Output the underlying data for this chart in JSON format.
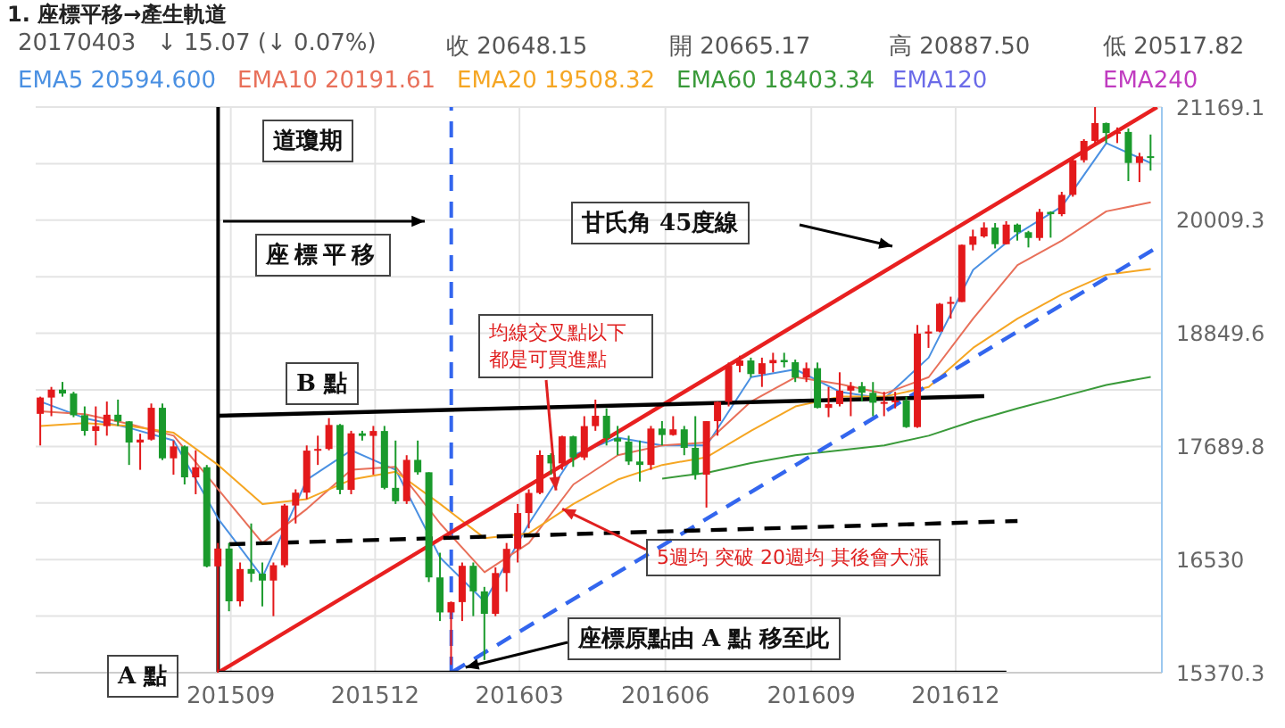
{
  "chart_data": {
    "type": "candlestick",
    "title": "1. 座標平移→產生軌道",
    "x": [
      "2015-05-04",
      "2015-05-11",
      "2015-05-18",
      "2015-05-25",
      "2015-06-01",
      "2015-06-08",
      "2015-06-15",
      "2015-06-22",
      "2015-06-29",
      "2015-07-06",
      "2015-07-13",
      "2015-07-20",
      "2015-07-27",
      "2015-08-03",
      "2015-08-10",
      "2015-08-17",
      "2015-08-24",
      "2015-08-31",
      "2015-09-07",
      "2015-09-14",
      "2015-09-21",
      "2015-09-28",
      "2015-10-05",
      "2015-10-12",
      "2015-10-19",
      "2015-10-26",
      "2015-11-02",
      "2015-11-09",
      "2015-11-16",
      "2015-11-23",
      "2015-11-30",
      "2015-12-07",
      "2015-12-14",
      "2015-12-21",
      "2015-12-28",
      "2016-01-04",
      "2016-01-11",
      "2016-01-18",
      "2016-01-25",
      "2016-02-01",
      "2016-02-08",
      "2016-02-15",
      "2016-02-22",
      "2016-02-29",
      "2016-03-07",
      "2016-03-14",
      "2016-03-21",
      "2016-03-28",
      "2016-04-04",
      "2016-04-11",
      "2016-04-18",
      "2016-04-25",
      "2016-05-02",
      "2016-05-09",
      "2016-05-16",
      "2016-05-23",
      "2016-05-30",
      "2016-06-06",
      "2016-06-13",
      "2016-06-20",
      "2016-06-27",
      "2016-07-04",
      "2016-07-11",
      "2016-07-18",
      "2016-07-25",
      "2016-08-01",
      "2016-08-08",
      "2016-08-15",
      "2016-08-22",
      "2016-08-29",
      "2016-09-05",
      "2016-09-12",
      "2016-09-19",
      "2016-09-26",
      "2016-10-03",
      "2016-10-10",
      "2016-10-17",
      "2016-10-24",
      "2016-10-31",
      "2016-11-07",
      "2016-11-14",
      "2016-11-21",
      "2016-11-28",
      "2016-12-05",
      "2016-12-12",
      "2016-12-19",
      "2016-12-26",
      "2017-01-02",
      "2017-01-09",
      "2017-01-16",
      "2017-01-23",
      "2017-01-30",
      "2017-02-06",
      "2017-02-13",
      "2017-02-20",
      "2017-02-27",
      "2017-03-06",
      "2017-03-13",
      "2017-03-20",
      "2017-03-27",
      "2017-04-03"
    ],
    "ohlc": [
      [
        18024,
        18200,
        17700,
        18191
      ],
      [
        18191,
        18300,
        18000,
        18272
      ],
      [
        18272,
        18351,
        18200,
        18232
      ],
      [
        18232,
        18250,
        17990,
        18010
      ],
      [
        18010,
        18100,
        17800,
        17849
      ],
      [
        17849,
        18100,
        17700,
        17898
      ],
      [
        17898,
        18150,
        17800,
        18015
      ],
      [
        18015,
        18170,
        17900,
        17947
      ],
      [
        17947,
        17950,
        17500,
        17730
      ],
      [
        17730,
        17820,
        17450,
        17760
      ],
      [
        17760,
        18130,
        17750,
        18086
      ],
      [
        18086,
        18130,
        17550,
        17568
      ],
      [
        17568,
        17750,
        17400,
        17690
      ],
      [
        17690,
        17700,
        17300,
        17373
      ],
      [
        17373,
        17650,
        17200,
        17477
      ],
      [
        17477,
        17500,
        16450,
        16460
      ],
      [
        16460,
        16700,
        15370.3,
        16643
      ],
      [
        16643,
        16700,
        16000,
        16102
      ],
      [
        16102,
        16500,
        16050,
        16433
      ],
      [
        16433,
        16900,
        16300,
        16385
      ],
      [
        16385,
        16500,
        16050,
        16315
      ],
      [
        16315,
        16500,
        15950,
        16472
      ],
      [
        16472,
        17100,
        16450,
        17084
      ],
      [
        17084,
        17250,
        16900,
        17216
      ],
      [
        17216,
        17700,
        17150,
        17647
      ],
      [
        17647,
        17800,
        17500,
        17664
      ],
      [
        17664,
        17980,
        17650,
        17910
      ],
      [
        17910,
        17920,
        17200,
        17245
      ],
      [
        17245,
        17850,
        17200,
        17824
      ],
      [
        17824,
        17850,
        17750,
        17798
      ],
      [
        17798,
        17900,
        17400,
        17848
      ],
      [
        17848,
        17900,
        17250,
        17265
      ],
      [
        17265,
        17750,
        17100,
        17128
      ],
      [
        17128,
        17600,
        17100,
        17552
      ],
      [
        17552,
        17750,
        17400,
        17425
      ],
      [
        17425,
        17425,
        16300,
        16347
      ],
      [
        16347,
        16600,
        15900,
        15988
      ],
      [
        15988,
        16100,
        15450,
        16094
      ],
      [
        16094,
        16500,
        15900,
        16466
      ],
      [
        16466,
        16500,
        15950,
        16204
      ],
      [
        16204,
        16250,
        15500,
        15974
      ],
      [
        15974,
        16450,
        15950,
        16392
      ],
      [
        16392,
        16700,
        16200,
        16640
      ],
      [
        16640,
        17100,
        16500,
        17007
      ],
      [
        17007,
        17250,
        16850,
        17213
      ],
      [
        17213,
        17650,
        17200,
        17602
      ],
      [
        17602,
        17620,
        17400,
        17516
      ],
      [
        17516,
        17800,
        17450,
        17793
      ],
      [
        17793,
        17800,
        17480,
        17577
      ],
      [
        17577,
        18000,
        17550,
        17898
      ],
      [
        17898,
        18170,
        17850,
        18004
      ],
      [
        18004,
        18080,
        17700,
        17774
      ],
      [
        17774,
        17900,
        17600,
        17740
      ],
      [
        17740,
        17800,
        17500,
        17535
      ],
      [
        17535,
        17750,
        17330,
        17500
      ],
      [
        17500,
        17900,
        17450,
        17873
      ],
      [
        17873,
        17950,
        17700,
        17807
      ],
      [
        17807,
        18000,
        17800,
        17865
      ],
      [
        17865,
        17900,
        17600,
        17675
      ],
      [
        17675,
        18000,
        17350,
        17400
      ],
      [
        17400,
        17950,
        17063,
        17949
      ],
      [
        17949,
        18150,
        17800,
        18147
      ],
      [
        18147,
        18550,
        18100,
        18516
      ],
      [
        18516,
        18620,
        18450,
        18571
      ],
      [
        18571,
        18600,
        18400,
        18432
      ],
      [
        18432,
        18600,
        18300,
        18543
      ],
      [
        18543,
        18650,
        18450,
        18576
      ],
      [
        18576,
        18650,
        18500,
        18553
      ],
      [
        18553,
        18580,
        18350,
        18395
      ],
      [
        18395,
        18550,
        18350,
        18492
      ],
      [
        18492,
        18550,
        18080,
        18085
      ],
      [
        18085,
        18300,
        17990,
        18124
      ],
      [
        18124,
        18450,
        18100,
        18262
      ],
      [
        18262,
        18350,
        18000,
        18308
      ],
      [
        18308,
        18350,
        18150,
        18240
      ],
      [
        18240,
        18350,
        18000,
        18138
      ],
      [
        18138,
        18250,
        18000,
        18145
      ],
      [
        18145,
        18250,
        18080,
        18161
      ],
      [
        18161,
        18200,
        17880,
        17888
      ],
      [
        17888,
        18935,
        17880,
        18847
      ],
      [
        18847,
        18935,
        18700,
        18868
      ],
      [
        18868,
        19160,
        18860,
        19152
      ],
      [
        19152,
        19225,
        19000,
        19171
      ],
      [
        19171,
        19760,
        19170,
        19757
      ],
      [
        19757,
        19912,
        19700,
        19843
      ],
      [
        19843,
        19987,
        19830,
        19934
      ],
      [
        19934,
        19980,
        19720,
        19763
      ],
      [
        19763,
        19999,
        19760,
        19964
      ],
      [
        19964,
        19975,
        19800,
        19886
      ],
      [
        19886,
        19900,
        19730,
        19827
      ],
      [
        19827,
        20125,
        19800,
        20094
      ],
      [
        20094,
        20100,
        19830,
        20071
      ],
      [
        20071,
        20300,
        20050,
        20269
      ],
      [
        20269,
        20640,
        20250,
        20624
      ],
      [
        20624,
        20840,
        20600,
        20822
      ],
      [
        20822,
        21169.1,
        20800,
        21005
      ],
      [
        21005,
        21010,
        20800,
        20903
      ],
      [
        20903,
        20960,
        20800,
        20914
      ],
      [
        20914,
        20950,
        20410,
        20596
      ],
      [
        20596,
        20700,
        20400,
        20663
      ],
      [
        20665.17,
        20887.5,
        20517.82,
        20648.15
      ]
    ],
    "colors": [
      "#e3191b",
      "#e3191b",
      "#1a9a2c",
      "#1a9a2c",
      "#1a9a2c",
      "#e3191b",
      "#e3191b",
      "#1a9a2c",
      "#1a9a2c",
      "#e3191b",
      "#e3191b",
      "#1a9a2c",
      "#e3191b",
      "#1a9a2c",
      "#e3191b",
      "#1a9a2c",
      "#e3191b",
      "#1a9a2c",
      "#e3191b",
      "#1a9a2c",
      "#1a9a2c",
      "#e3191b",
      "#e3191b",
      "#e3191b",
      "#e3191b",
      "#e3191b",
      "#e3191b",
      "#1a9a2c",
      "#e3191b",
      "#1a9a2c",
      "#e3191b",
      "#1a9a2c",
      "#1a9a2c",
      "#e3191b",
      "#1a9a2c",
      "#1a9a2c",
      "#1a9a2c",
      "#e3191b",
      "#e3191b",
      "#1a9a2c",
      "#1a9a2c",
      "#e3191b",
      "#e3191b",
      "#e3191b",
      "#e3191b",
      "#e3191b",
      "#1a9a2c",
      "#e3191b",
      "#1a9a2c",
      "#e3191b",
      "#e3191b",
      "#1a9a2c",
      "#1a9a2c",
      "#1a9a2c",
      "#1a9a2c",
      "#e3191b",
      "#1a9a2c",
      "#e3191b",
      "#1a9a2c",
      "#1a9a2c",
      "#e3191b",
      "#e3191b",
      "#e3191b",
      "#e3191b",
      "#1a9a2c",
      "#e3191b",
      "#e3191b",
      "#1a9a2c",
      "#1a9a2c",
      "#e3191b",
      "#1a9a2c",
      "#e3191b",
      "#e3191b",
      "#e3191b",
      "#1a9a2c",
      "#1a9a2c",
      "#e3191b",
      "#e3191b",
      "#1a9a2c",
      "#e3191b",
      "#e3191b",
      "#e3191b",
      "#e3191b",
      "#e3191b",
      "#e3191b",
      "#e3191b",
      "#1a9a2c",
      "#e3191b",
      "#1a9a2c",
      "#1a9a2c",
      "#e3191b",
      "#1a9a2c",
      "#e3191b",
      "#e3191b",
      "#e3191b",
      "#e3191b",
      "#1a9a2c",
      "#e3191b",
      "#1a9a2c",
      "#e3191b",
      "#1a9a2c"
    ],
    "series": [
      {
        "type": "line",
        "name": "EMA5 20594.600",
        "color": "#4a90e2",
        "x": [
          "2015-05-04",
          "2015-06-01",
          "2015-06-29",
          "2015-07-27",
          "2015-08-24",
          "2015-09-21",
          "2015-10-19",
          "2015-11-16",
          "2015-12-14",
          "2016-01-11",
          "2016-02-08",
          "2016-03-07",
          "2016-04-04",
          "2016-05-02",
          "2016-05-30",
          "2016-06-27",
          "2016-07-25",
          "2016-08-22",
          "2016-09-19",
          "2016-10-17",
          "2016-11-14",
          "2016-12-12",
          "2017-01-09",
          "2017-02-06",
          "2017-03-06",
          "2017-04-03"
        ],
        "values": [
          18150,
          17980,
          17880,
          17750,
          16950,
          16350,
          17350,
          17650,
          17450,
          16550,
          16100,
          16900,
          17600,
          17780,
          17700,
          17700,
          18400,
          18480,
          18250,
          18180,
          18600,
          19500,
          19870,
          20150,
          20800,
          20595
        ]
      },
      {
        "type": "line",
        "name": "EMA10 20191.61",
        "color": "#e8705a",
        "x": [
          "2015-05-04",
          "2015-06-01",
          "2015-06-29",
          "2015-07-27",
          "2015-08-24",
          "2015-09-21",
          "2015-10-19",
          "2015-11-16",
          "2015-12-14",
          "2016-01-11",
          "2016-02-08",
          "2016-03-07",
          "2016-04-04",
          "2016-05-02",
          "2016-05-30",
          "2016-06-27",
          "2016-07-25",
          "2016-08-22",
          "2016-09-19",
          "2016-10-17",
          "2016-11-14",
          "2016-12-12",
          "2017-01-09",
          "2017-02-06",
          "2017-03-06",
          "2017-04-03"
        ],
        "values": [
          18050,
          18020,
          17920,
          17800,
          17250,
          16700,
          17050,
          17450,
          17480,
          16900,
          16400,
          16700,
          17300,
          17600,
          17700,
          17730,
          18150,
          18400,
          18330,
          18230,
          18400,
          19000,
          19550,
          19800,
          20100,
          20192
        ]
      },
      {
        "type": "line",
        "name": "EMA20 19508.32",
        "color": "#f5a623",
        "x": [
          "2015-05-04",
          "2015-06-01",
          "2015-06-29",
          "2015-07-27",
          "2015-08-24",
          "2015-09-21",
          "2015-10-19",
          "2015-11-16",
          "2015-12-14",
          "2016-01-11",
          "2016-02-08",
          "2016-03-07",
          "2016-04-04",
          "2016-05-02",
          "2016-05-30",
          "2016-06-27",
          "2016-07-25",
          "2016-08-22",
          "2016-09-19",
          "2016-10-17",
          "2016-11-14",
          "2016-12-12",
          "2017-01-09",
          "2017-02-06",
          "2017-03-06",
          "2017-04-03"
        ],
        "values": [
          17900,
          17930,
          17900,
          17830,
          17500,
          17100,
          17150,
          17350,
          17430,
          17100,
          16750,
          16800,
          17100,
          17350,
          17500,
          17580,
          17850,
          18100,
          18200,
          18200,
          18300,
          18700,
          19000,
          19250,
          19450,
          19508
        ]
      },
      {
        "type": "line",
        "name": "EMA60 18403.34",
        "color": "#3a9a3a",
        "x": [
          "2016-05-30",
          "2016-06-27",
          "2016-07-25",
          "2016-08-22",
          "2016-09-19",
          "2016-10-17",
          "2016-11-14",
          "2016-12-12",
          "2017-01-09",
          "2017-02-06",
          "2017-03-06",
          "2017-04-03"
        ],
        "values": [
          17360,
          17420,
          17520,
          17600,
          17650,
          17700,
          17800,
          17950,
          18080,
          18200,
          18320,
          18403
        ]
      },
      {
        "type": "line",
        "color": "#e82020",
        "x": [
          "2015-08-24",
          "2017-04-07"
        ],
        "values": [
          15370.3,
          21169.1
        ]
      },
      {
        "type": "line",
        "color": "#3366ee",
        "line_style": "dashed",
        "x": [
          "2016-01-18",
          "2017-04-10"
        ],
        "values": [
          15370.3,
          19760
        ]
      },
      {
        "type": "line",
        "color": "#000000",
        "x": [
          "2015-08-24",
          "2016-12-19"
        ],
        "values": [
          18004,
          18205
        ]
      },
      {
        "type": "line",
        "color": "#000000",
        "line_style": "dashed",
        "x": [
          "2015-08-31",
          "2017-01-09"
        ],
        "values": [
          16687,
          16925
        ]
      },
      {
        "type": "line",
        "color": "#000000",
        "x": [
          "2015-08-24",
          "2017-01-02"
        ],
        "values": [
          15370.3,
          15370.3
        ]
      }
    ],
    "ref_lines": [
      {
        "axis": "x",
        "value": "2015-08-24",
        "color": "#000000",
        "line_style": "solid"
      },
      {
        "axis": "x",
        "value": "2016-01-18",
        "color": "#3366ee",
        "line_style": "dashed"
      }
    ],
    "xlim": [
      "2015-05-01",
      "2017-04-10"
    ],
    "xticks": [
      {
        "value": "2015-09-01",
        "label": "201509"
      },
      {
        "value": "2015-12-01",
        "label": "201512"
      },
      {
        "value": "2016-03-01",
        "label": "201603"
      },
      {
        "value": "2016-06-01",
        "label": "201606"
      },
      {
        "value": "2016-09-01",
        "label": "201609"
      },
      {
        "value": "2016-12-01",
        "label": "201612"
      }
    ],
    "ylim": [
      15370.3,
      21169.1
    ],
    "yticks": [
      15370.3,
      {
        "value": 15950.15,
        "label": null
      },
      16530.0,
      {
        "value": 17109.9,
        "label": null
      },
      17689.8,
      {
        "value": 18269.7,
        "label": null
      },
      18849.6,
      {
        "value": 19429.45,
        "label": null
      },
      20009.3,
      {
        "value": 20589.2,
        "label": null
      },
      21169.1
    ],
    "grid": true,
    "legend": "top",
    "marker": "none",
    "line_style": "solid",
    "annotations": [
      "20170403",
      "↓ 15.07 (↓ 0.07%)",
      "收 20648.15",
      "開 20665.17",
      "高 20887.50",
      "低 20517.82",
      "EMA120",
      "EMA240",
      "道瓊期",
      "座標平移",
      "B 點",
      "甘氏角 45度線",
      {
        "text": "均線交叉點以下都是可買進點",
        "x": "2016-03-24",
        "y": 17240
      },
      {
        "text": "5週均 突破 20週均 其後會大漲",
        "x": "2016-03-28",
        "y": 17050
      },
      {
        "text": "座標原點由 A 點 移至此",
        "x": "2016-01-18",
        "y": 15370.3
      },
      "A 點"
    ]
  }
}
